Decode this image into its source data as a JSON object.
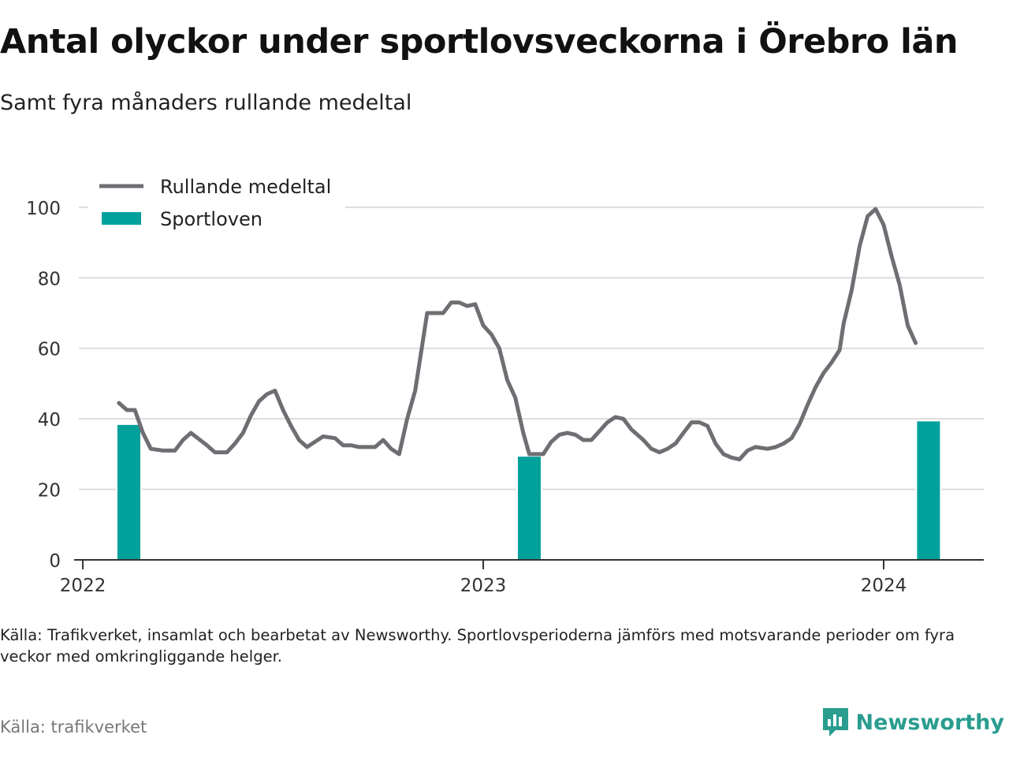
{
  "title": "Antal olyckor under sportlovsveckorna i Örebro län",
  "subtitle": "Samt fyra månaders rullande medeltal",
  "footnote": "Källa: Trafikverket, insamlat och bearbetat av Newsworthy. Sportlovsperioderna jämförs med motsvarande perioder om fyra veckor med omkringliggande helger.",
  "source": "Källa: trafikverket",
  "brand": {
    "name": "Newsworthy",
    "icon": "newsworthy-logo-icon"
  },
  "colors": {
    "line": "#6e6e73",
    "bar": "#00a19a",
    "grid": "#dddddd",
    "axis": "#333333",
    "brand": "#2a9d8f"
  },
  "chart_data": {
    "type": "bar+line",
    "ylim": [
      0,
      104
    ],
    "yticks": [
      0,
      20,
      40,
      60,
      80,
      100
    ],
    "xlim": [
      2021.99,
      2024.25
    ],
    "xticks": [
      {
        "value": 2022,
        "label": "2022"
      },
      {
        "value": 2023,
        "label": "2023"
      },
      {
        "value": 2024,
        "label": "2024"
      }
    ],
    "grid": true,
    "legend_position": "top-left",
    "legend": [
      {
        "label": "Rullande medeltal",
        "kind": "line"
      },
      {
        "label": "Sportloven",
        "kind": "bar"
      }
    ],
    "bars": {
      "name": "Sportloven",
      "x": [
        2022.115,
        2023.115,
        2024.112
      ],
      "values": [
        38.5,
        29.5,
        39.5
      ]
    },
    "line": {
      "name": "Rullande medeltal",
      "x": [
        2022.09,
        2022.11,
        2022.13,
        2022.15,
        2022.17,
        2022.2,
        2022.23,
        2022.25,
        2022.27,
        2022.31,
        2022.33,
        2022.36,
        2022.38,
        2022.4,
        2022.42,
        2022.44,
        2022.46,
        2022.48,
        2022.5,
        2022.52,
        2022.54,
        2022.56,
        2022.58,
        2022.6,
        2022.63,
        2022.65,
        2022.67,
        2022.69,
        2022.73,
        2022.75,
        2022.77,
        2022.79,
        2022.81,
        2022.83,
        2022.86,
        2022.88,
        2022.9,
        2022.92,
        2022.94,
        2022.96,
        2022.98,
        2023.0,
        2023.02,
        2023.04,
        2023.06,
        2023.08,
        2023.1,
        2023.115,
        2023.15,
        2023.17,
        2023.19,
        2023.21,
        2023.23,
        2023.25,
        2023.27,
        2023.29,
        2023.31,
        2023.33,
        2023.35,
        2023.37,
        2023.4,
        2023.42,
        2023.44,
        2023.46,
        2023.48,
        2023.5,
        2023.52,
        2023.54,
        2023.56,
        2023.58,
        2023.6,
        2023.62,
        2023.64,
        2023.66,
        2023.68,
        2023.71,
        2023.73,
        2023.75,
        2023.77,
        2023.79,
        2023.81,
        2023.83,
        2023.85,
        2023.87,
        2023.89,
        2023.9,
        2023.92,
        2023.94,
        2023.96,
        2023.98,
        2024.0,
        2024.02,
        2024.04,
        2024.06,
        2024.08
      ],
      "values": [
        44.5,
        42.5,
        42.5,
        36,
        31.5,
        31,
        31,
        34,
        36,
        32.5,
        30.5,
        30.5,
        33,
        36,
        41,
        45,
        47,
        48,
        42.5,
        38,
        34,
        32,
        33.5,
        35,
        34.5,
        32.5,
        32.5,
        32,
        32,
        34,
        31.5,
        30,
        40,
        48,
        70,
        70,
        70,
        73,
        73,
        72,
        72.5,
        66.5,
        64,
        60,
        51,
        46,
        36,
        30,
        30,
        33.5,
        35.5,
        36,
        35.5,
        34,
        34,
        36.5,
        39,
        40.5,
        40,
        37,
        34,
        31.5,
        30.5,
        31.5,
        33,
        36,
        39,
        39,
        38,
        33,
        30,
        29,
        28.5,
        31,
        32,
        31.5,
        32,
        33,
        34.5,
        38.5,
        44,
        49,
        53,
        56,
        59.5,
        67,
        76.5,
        89,
        97.5,
        99.5,
        95,
        86,
        78,
        66.5,
        61.5
      ]
    }
  }
}
